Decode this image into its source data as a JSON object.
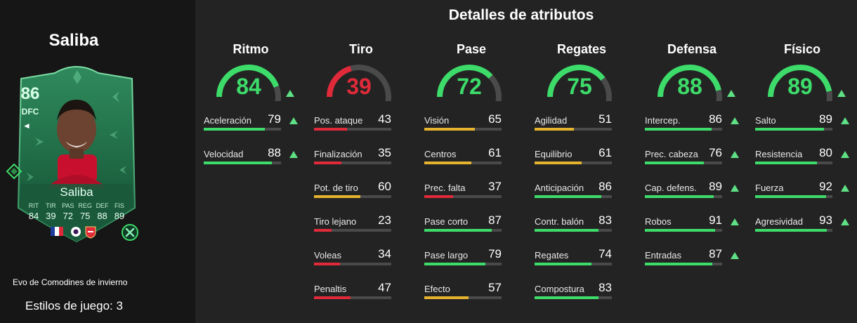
{
  "player": {
    "name": "Saliba",
    "card": {
      "rating": "86",
      "position": "DFC",
      "name": "Saliba",
      "stat_labels": [
        "RIT",
        "TIR",
        "PAS",
        "REG",
        "DEF",
        "FIS"
      ],
      "stat_values": [
        "84",
        "39",
        "72",
        "75",
        "88",
        "89"
      ]
    },
    "evolution": "Evo de Comodines de invierno",
    "playstyles": "Estilos de juego: 3"
  },
  "details_title": "Detalles de atributos",
  "colors": {
    "green": "#3ddc6a",
    "red": "#e02a3a",
    "yellow": "#e6b32e",
    "arrow": "#5ee084",
    "track": "#4a4a4a"
  },
  "categories": [
    {
      "name": "Ritmo",
      "value": 84,
      "upgraded": true,
      "attributes": [
        {
          "label": "Aceleración",
          "value": 79,
          "upgraded": true
        },
        {
          "label": "Velocidad",
          "value": 88,
          "upgraded": true
        }
      ]
    },
    {
      "name": "Tiro",
      "value": 39,
      "upgraded": false,
      "attributes": [
        {
          "label": "Pos. ataque",
          "value": 43,
          "upgraded": false
        },
        {
          "label": "Finalización",
          "value": 35,
          "upgraded": false
        },
        {
          "label": "Pot. de tiro",
          "value": 60,
          "upgraded": false
        },
        {
          "label": "Tiro lejano",
          "value": 23,
          "upgraded": false
        },
        {
          "label": "Voleas",
          "value": 34,
          "upgraded": false
        },
        {
          "label": "Penaltis",
          "value": 47,
          "upgraded": false
        }
      ]
    },
    {
      "name": "Pase",
      "value": 72,
      "upgraded": false,
      "attributes": [
        {
          "label": "Visión",
          "value": 65,
          "upgraded": false
        },
        {
          "label": "Centros",
          "value": 61,
          "upgraded": false
        },
        {
          "label": "Prec. falta",
          "value": 37,
          "upgraded": false
        },
        {
          "label": "Pase corto",
          "value": 87,
          "upgraded": false
        },
        {
          "label": "Pase largo",
          "value": 79,
          "upgraded": false
        },
        {
          "label": "Efecto",
          "value": 57,
          "upgraded": false
        }
      ]
    },
    {
      "name": "Regates",
      "value": 75,
      "upgraded": false,
      "attributes": [
        {
          "label": "Agilidad",
          "value": 51,
          "upgraded": false
        },
        {
          "label": "Equilibrio",
          "value": 61,
          "upgraded": false
        },
        {
          "label": "Anticipación",
          "value": 86,
          "upgraded": false
        },
        {
          "label": "Contr. balón",
          "value": 83,
          "upgraded": false
        },
        {
          "label": "Regates",
          "value": 74,
          "upgraded": false
        },
        {
          "label": "Compostura",
          "value": 83,
          "upgraded": false
        }
      ]
    },
    {
      "name": "Defensa",
      "value": 88,
      "upgraded": true,
      "attributes": [
        {
          "label": "Intercep.",
          "value": 86,
          "upgraded": true
        },
        {
          "label": "Prec. cabeza",
          "value": 76,
          "upgraded": true
        },
        {
          "label": "Cap. defens.",
          "value": 89,
          "upgraded": true
        },
        {
          "label": "Robos",
          "value": 91,
          "upgraded": true
        },
        {
          "label": "Entradas",
          "value": 87,
          "upgraded": true
        }
      ]
    },
    {
      "name": "Físico",
      "value": 89,
      "upgraded": true,
      "attributes": [
        {
          "label": "Salto",
          "value": 89,
          "upgraded": true
        },
        {
          "label": "Resistencia",
          "value": 80,
          "upgraded": true
        },
        {
          "label": "Fuerza",
          "value": 92,
          "upgraded": true
        },
        {
          "label": "Agresividad",
          "value": 93,
          "upgraded": true
        }
      ]
    }
  ]
}
